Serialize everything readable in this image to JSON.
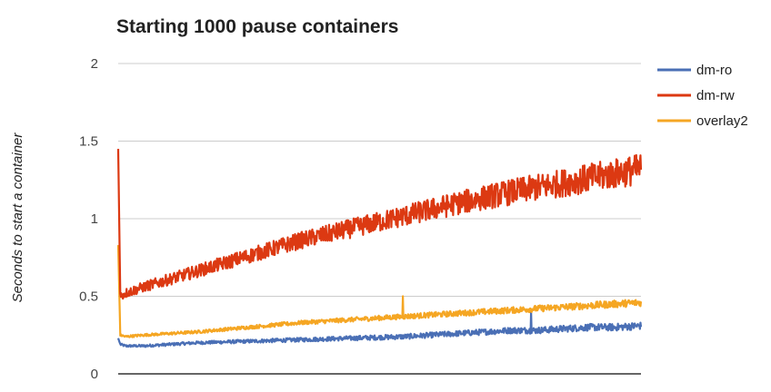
{
  "chart_data": {
    "type": "line",
    "title": "Starting 1000 pause containers",
    "xlabel": "",
    "ylabel": "Seconds to start a container",
    "ylim": [
      0,
      2
    ],
    "y_ticks": [
      "0",
      "0.5",
      "1",
      "1.5",
      "2"
    ],
    "x_range": [
      1,
      1000
    ],
    "grid": true,
    "legend_position": "right",
    "series": [
      {
        "name": "dm-ro",
        "color": "#4a6fb5",
        "x": [
          1,
          5,
          15,
          50,
          150,
          250,
          350,
          450,
          550,
          650,
          700,
          750,
          800,
          850,
          900,
          950,
          1000
        ],
        "values": [
          0.23,
          0.19,
          0.18,
          0.18,
          0.2,
          0.21,
          0.22,
          0.23,
          0.24,
          0.26,
          0.27,
          0.28,
          0.28,
          0.29,
          0.3,
          0.3,
          0.31
        ]
      },
      {
        "name": "dm-rw",
        "color": "#dc3912",
        "x": [
          1,
          5,
          15,
          50,
          150,
          250,
          350,
          450,
          550,
          650,
          750,
          850,
          950,
          1000
        ],
        "values": [
          1.45,
          0.5,
          0.52,
          0.56,
          0.66,
          0.76,
          0.86,
          0.94,
          1.02,
          1.1,
          1.17,
          1.23,
          1.29,
          1.32
        ]
      },
      {
        "name": "overlay2",
        "color": "#f5a623",
        "x": [
          1,
          5,
          15,
          50,
          150,
          250,
          350,
          450,
          550,
          650,
          750,
          850,
          950,
          1000
        ],
        "values": [
          0.83,
          0.25,
          0.24,
          0.25,
          0.27,
          0.3,
          0.33,
          0.35,
          0.37,
          0.39,
          0.41,
          0.43,
          0.45,
          0.46
        ]
      }
    ],
    "annotations_spikes": [
      {
        "series": "overlay2",
        "x": 545,
        "value": 0.5
      },
      {
        "series": "dm-ro",
        "x": 790,
        "value": 0.4
      }
    ]
  }
}
